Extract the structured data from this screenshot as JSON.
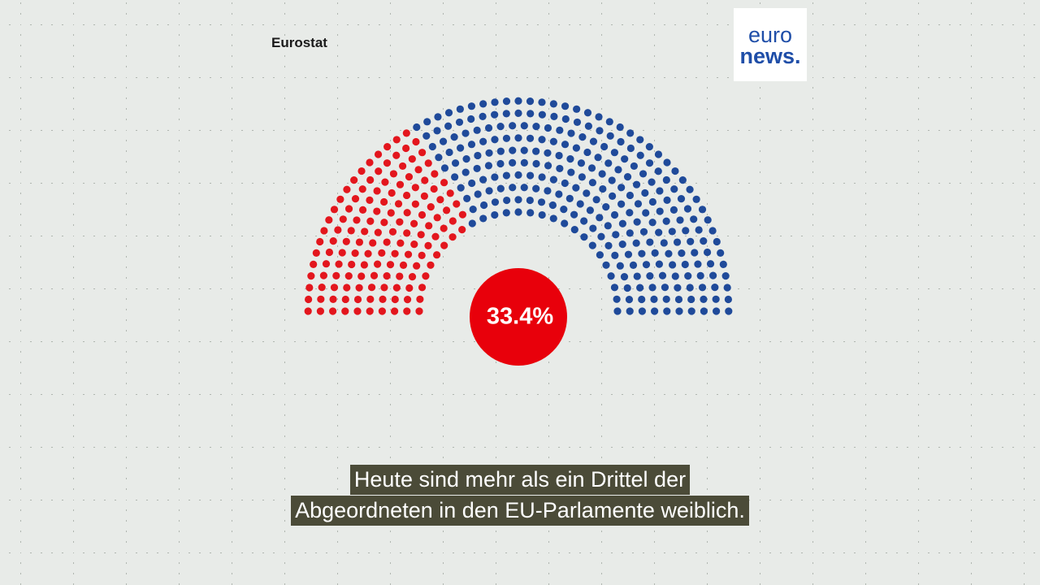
{
  "source": "Eurostat",
  "logo": {
    "line1": "euro",
    "line2": "news."
  },
  "chart_data": {
    "type": "parliament",
    "values": [
      33.4
    ],
    "value_labels": [
      "33.4%"
    ],
    "colors": [
      "#e3161d",
      "#1f4a9a"
    ],
    "highlight_color": "#e8000b"
  },
  "subtitles": [
    "Heute sind mehr als ein Drittel der",
    "Abgeordneten in den EU-Parlamente weiblich."
  ]
}
